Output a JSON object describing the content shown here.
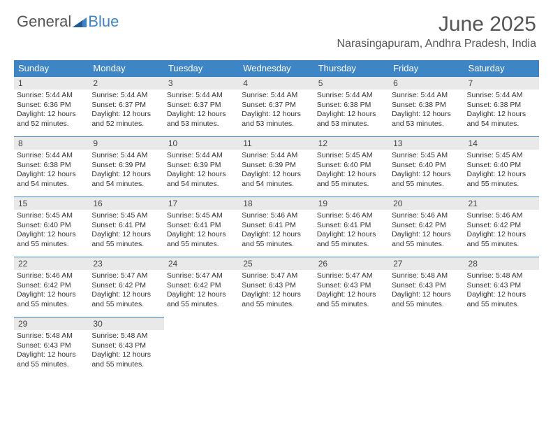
{
  "logo": {
    "text1": "General",
    "text2": "Blue"
  },
  "title": "June 2025",
  "location": "Narasingapuram, Andhra Pradesh, India",
  "colors": {
    "accent": "#3e85c6",
    "daynum_bg": "#e9e9e9",
    "text": "#333333",
    "header_text": "#555555"
  },
  "weekdays": [
    "Sunday",
    "Monday",
    "Tuesday",
    "Wednesday",
    "Thursday",
    "Friday",
    "Saturday"
  ],
  "weeks": [
    [
      {
        "n": "1",
        "sr": "Sunrise: 5:44 AM",
        "ss": "Sunset: 6:36 PM",
        "d1": "Daylight: 12 hours",
        "d2": "and 52 minutes."
      },
      {
        "n": "2",
        "sr": "Sunrise: 5:44 AM",
        "ss": "Sunset: 6:37 PM",
        "d1": "Daylight: 12 hours",
        "d2": "and 52 minutes."
      },
      {
        "n": "3",
        "sr": "Sunrise: 5:44 AM",
        "ss": "Sunset: 6:37 PM",
        "d1": "Daylight: 12 hours",
        "d2": "and 53 minutes."
      },
      {
        "n": "4",
        "sr": "Sunrise: 5:44 AM",
        "ss": "Sunset: 6:37 PM",
        "d1": "Daylight: 12 hours",
        "d2": "and 53 minutes."
      },
      {
        "n": "5",
        "sr": "Sunrise: 5:44 AM",
        "ss": "Sunset: 6:38 PM",
        "d1": "Daylight: 12 hours",
        "d2": "and 53 minutes."
      },
      {
        "n": "6",
        "sr": "Sunrise: 5:44 AM",
        "ss": "Sunset: 6:38 PM",
        "d1": "Daylight: 12 hours",
        "d2": "and 53 minutes."
      },
      {
        "n": "7",
        "sr": "Sunrise: 5:44 AM",
        "ss": "Sunset: 6:38 PM",
        "d1": "Daylight: 12 hours",
        "d2": "and 54 minutes."
      }
    ],
    [
      {
        "n": "8",
        "sr": "Sunrise: 5:44 AM",
        "ss": "Sunset: 6:38 PM",
        "d1": "Daylight: 12 hours",
        "d2": "and 54 minutes."
      },
      {
        "n": "9",
        "sr": "Sunrise: 5:44 AM",
        "ss": "Sunset: 6:39 PM",
        "d1": "Daylight: 12 hours",
        "d2": "and 54 minutes."
      },
      {
        "n": "10",
        "sr": "Sunrise: 5:44 AM",
        "ss": "Sunset: 6:39 PM",
        "d1": "Daylight: 12 hours",
        "d2": "and 54 minutes."
      },
      {
        "n": "11",
        "sr": "Sunrise: 5:44 AM",
        "ss": "Sunset: 6:39 PM",
        "d1": "Daylight: 12 hours",
        "d2": "and 54 minutes."
      },
      {
        "n": "12",
        "sr": "Sunrise: 5:45 AM",
        "ss": "Sunset: 6:40 PM",
        "d1": "Daylight: 12 hours",
        "d2": "and 55 minutes."
      },
      {
        "n": "13",
        "sr": "Sunrise: 5:45 AM",
        "ss": "Sunset: 6:40 PM",
        "d1": "Daylight: 12 hours",
        "d2": "and 55 minutes."
      },
      {
        "n": "14",
        "sr": "Sunrise: 5:45 AM",
        "ss": "Sunset: 6:40 PM",
        "d1": "Daylight: 12 hours",
        "d2": "and 55 minutes."
      }
    ],
    [
      {
        "n": "15",
        "sr": "Sunrise: 5:45 AM",
        "ss": "Sunset: 6:40 PM",
        "d1": "Daylight: 12 hours",
        "d2": "and 55 minutes."
      },
      {
        "n": "16",
        "sr": "Sunrise: 5:45 AM",
        "ss": "Sunset: 6:41 PM",
        "d1": "Daylight: 12 hours",
        "d2": "and 55 minutes."
      },
      {
        "n": "17",
        "sr": "Sunrise: 5:45 AM",
        "ss": "Sunset: 6:41 PM",
        "d1": "Daylight: 12 hours",
        "d2": "and 55 minutes."
      },
      {
        "n": "18",
        "sr": "Sunrise: 5:46 AM",
        "ss": "Sunset: 6:41 PM",
        "d1": "Daylight: 12 hours",
        "d2": "and 55 minutes."
      },
      {
        "n": "19",
        "sr": "Sunrise: 5:46 AM",
        "ss": "Sunset: 6:41 PM",
        "d1": "Daylight: 12 hours",
        "d2": "and 55 minutes."
      },
      {
        "n": "20",
        "sr": "Sunrise: 5:46 AM",
        "ss": "Sunset: 6:42 PM",
        "d1": "Daylight: 12 hours",
        "d2": "and 55 minutes."
      },
      {
        "n": "21",
        "sr": "Sunrise: 5:46 AM",
        "ss": "Sunset: 6:42 PM",
        "d1": "Daylight: 12 hours",
        "d2": "and 55 minutes."
      }
    ],
    [
      {
        "n": "22",
        "sr": "Sunrise: 5:46 AM",
        "ss": "Sunset: 6:42 PM",
        "d1": "Daylight: 12 hours",
        "d2": "and 55 minutes."
      },
      {
        "n": "23",
        "sr": "Sunrise: 5:47 AM",
        "ss": "Sunset: 6:42 PM",
        "d1": "Daylight: 12 hours",
        "d2": "and 55 minutes."
      },
      {
        "n": "24",
        "sr": "Sunrise: 5:47 AM",
        "ss": "Sunset: 6:42 PM",
        "d1": "Daylight: 12 hours",
        "d2": "and 55 minutes."
      },
      {
        "n": "25",
        "sr": "Sunrise: 5:47 AM",
        "ss": "Sunset: 6:43 PM",
        "d1": "Daylight: 12 hours",
        "d2": "and 55 minutes."
      },
      {
        "n": "26",
        "sr": "Sunrise: 5:47 AM",
        "ss": "Sunset: 6:43 PM",
        "d1": "Daylight: 12 hours",
        "d2": "and 55 minutes."
      },
      {
        "n": "27",
        "sr": "Sunrise: 5:48 AM",
        "ss": "Sunset: 6:43 PM",
        "d1": "Daylight: 12 hours",
        "d2": "and 55 minutes."
      },
      {
        "n": "28",
        "sr": "Sunrise: 5:48 AM",
        "ss": "Sunset: 6:43 PM",
        "d1": "Daylight: 12 hours",
        "d2": "and 55 minutes."
      }
    ],
    [
      {
        "n": "29",
        "sr": "Sunrise: 5:48 AM",
        "ss": "Sunset: 6:43 PM",
        "d1": "Daylight: 12 hours",
        "d2": "and 55 minutes."
      },
      {
        "n": "30",
        "sr": "Sunrise: 5:48 AM",
        "ss": "Sunset: 6:43 PM",
        "d1": "Daylight: 12 hours",
        "d2": "and 55 minutes."
      },
      null,
      null,
      null,
      null,
      null
    ]
  ]
}
